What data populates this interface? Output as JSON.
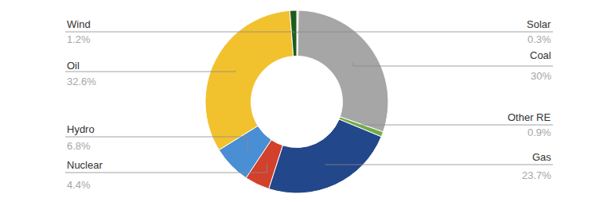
{
  "chart_data": {
    "type": "pie",
    "categories": [
      "Solar",
      "Coal",
      "Other RE",
      "Gas",
      "Nuclear",
      "Hydro",
      "Oil",
      "Wind"
    ],
    "values": [
      0.3,
      30,
      0.9,
      23.7,
      4.4,
      6.8,
      32.6,
      1.2
    ],
    "value_labels": [
      "0.3%",
      "30%",
      "0.9%",
      "23.7%",
      "4.4%",
      "6.8%",
      "32.6%",
      "1.2%"
    ],
    "colors": [
      "#e8c89a",
      "#a6a6a6",
      "#70ad47",
      "#22478a",
      "#d1412b",
      "#4a8ed4",
      "#f2c12e",
      "#1e5c1e"
    ],
    "data_labels": true
  }
}
